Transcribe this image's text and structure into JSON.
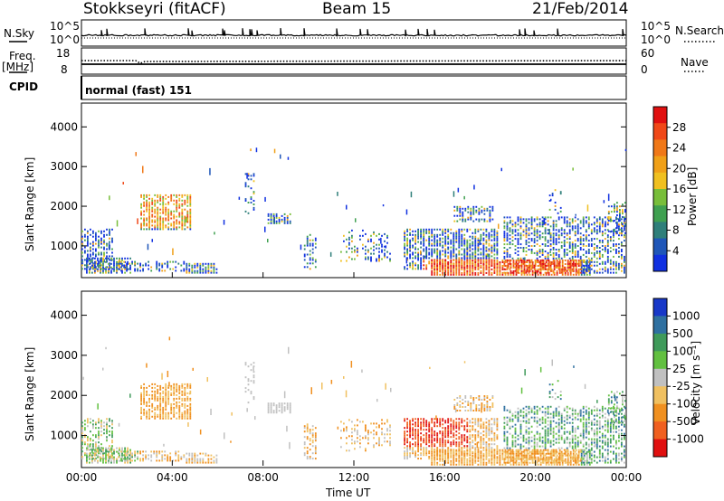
{
  "header": {
    "station": "Stokkseyri (fitACF)",
    "beam": "Beam 15",
    "date": "21/Feb/2014"
  },
  "top_panels": {
    "nsky_label": "N.Sky",
    "nsearch_label": "N.Search",
    "nsky_ticks": [
      "10^5",
      "10^0"
    ],
    "nsearch_ticks": [
      "10^5",
      "10^0"
    ],
    "freq_label": "Freq.",
    "freq_unit": "[MHz]",
    "freq_ticks": [
      "18",
      "8"
    ],
    "nave_label": "Nave",
    "nave_ticks": [
      "60",
      "0"
    ],
    "cpid_label": "CPID",
    "cpid_value": "normal (fast) 151"
  },
  "chart_data": [
    {
      "type": "heatmap",
      "name": "power-panel",
      "ylabel": "Slant Range [km]",
      "yticks": [
        "1000",
        "2000",
        "3000",
        "4000"
      ],
      "ylim": [
        200,
        4600
      ],
      "xlim_hours": [
        0,
        24
      ],
      "colorbar_label": "Power [dB]",
      "colorbar_ticks": [
        "4",
        "8",
        "12",
        "16",
        "20",
        "24",
        "28"
      ],
      "colorscale": [
        "#1030e0",
        "#1f56b8",
        "#2f7f7a",
        "#3fa050",
        "#78be3a",
        "#f0c020",
        "#f0a018",
        "#f07818",
        "#f04818",
        "#e01010"
      ]
    },
    {
      "type": "heatmap",
      "name": "velocity-panel",
      "ylabel": "Slant Range [km]",
      "yticks": [
        "1000",
        "2000",
        "3000",
        "4000"
      ],
      "ylim": [
        200,
        4600
      ],
      "xlim_hours": [
        0,
        24
      ],
      "colorbar_label": "Velocity [m s⁻¹]",
      "colorbar_ticks": [
        "1000",
        "500",
        "100",
        "25",
        "-25",
        "-100",
        "-500",
        "-1000"
      ],
      "colorscale": [
        "#1838c8",
        "#2f70a0",
        "#3f9a5a",
        "#62c040",
        "#c0c0c0",
        "#f0c060",
        "#f09020",
        "#f06020",
        "#e01010"
      ]
    }
  ],
  "xaxis": {
    "ticks": [
      "00:00",
      "04:00",
      "08:00",
      "12:00",
      "16:00",
      "20:00",
      "00:00"
    ],
    "label": "Time UT"
  }
}
